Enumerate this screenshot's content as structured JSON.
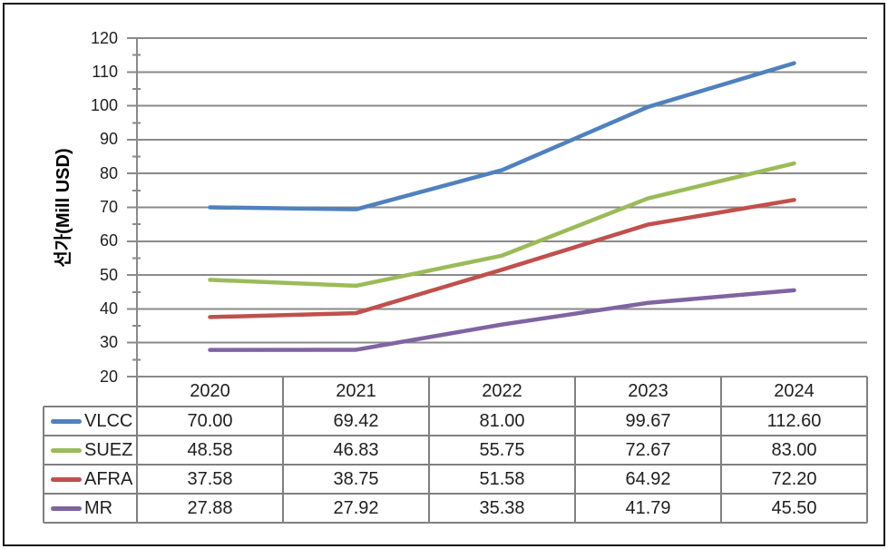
{
  "chart_data": {
    "type": "line",
    "title": "",
    "xlabel": "",
    "ylabel": "선가(Mill USD)",
    "categories": [
      "2020",
      "2021",
      "2022",
      "2023",
      "2024"
    ],
    "series": [
      {
        "name": "VLCC",
        "color": "#4F81BD",
        "values": [
          70.0,
          69.42,
          81.0,
          99.67,
          112.6
        ]
      },
      {
        "name": "SUEZ",
        "color": "#9BBB59",
        "values": [
          48.58,
          46.83,
          55.75,
          72.67,
          83.0
        ]
      },
      {
        "name": "AFRA",
        "color": "#C0504D",
        "values": [
          37.58,
          38.75,
          51.58,
          64.92,
          72.2
        ]
      },
      {
        "name": "MR",
        "color": "#8064A2",
        "values": [
          27.88,
          27.92,
          35.38,
          41.79,
          45.5
        ]
      }
    ],
    "ylim": [
      20,
      120
    ],
    "y_major_unit": 10,
    "y_minor_unit": 5,
    "value_decimals": 2,
    "grid": "horizontal",
    "legend_position": "table-left",
    "data_table_shown": true
  },
  "colors": {
    "gridline": "#8a8a8a",
    "axis": "#8a8a8a",
    "table_border": "#808080",
    "text": "#1f1f1f",
    "frame": "#151515",
    "background": "#ffffff"
  }
}
